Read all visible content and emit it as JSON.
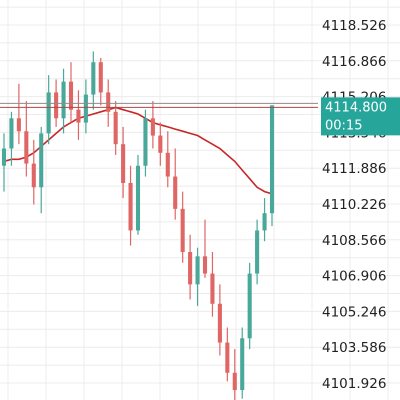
{
  "chart_data": {
    "type": "candlestick",
    "ylim": [
      4101.0,
      4119.4
    ],
    "y_ticks": [
      "4118.526",
      "4116.866",
      "4115.206",
      "4113.546",
      "4111.886",
      "4110.226",
      "4108.566",
      "4106.906",
      "4105.246",
      "4103.586",
      "4101.926"
    ],
    "grid": true,
    "colors": {
      "up": "#4aa89a",
      "down": "#e06666",
      "ma": "#c62828",
      "grid": "#ececec",
      "price_line": "#8c8c8c",
      "tag_bg": "#26a69a"
    },
    "current_price": {
      "value": 4114.8,
      "label": "4114.800",
      "countdown": "00:15"
    },
    "ma_series": [
      4112.2,
      4112.3,
      4112.3,
      4112.4,
      4112.6,
      4112.9,
      4113.2,
      4113.5,
      4113.8,
      4114.0,
      4114.2,
      4114.3,
      4114.4,
      4114.5,
      4114.6,
      4114.7,
      4114.6,
      4114.5,
      4114.4,
      4114.2,
      4114.0,
      4113.9,
      4113.8,
      4113.7,
      4113.6,
      4113.5,
      4113.4,
      4113.2,
      4113.0,
      4112.8,
      4112.5,
      4112.2,
      4111.8,
      4111.4,
      4111.0,
      4110.8,
      4110.7
    ],
    "candles": [
      {
        "o": 4112.0,
        "h": 4113.5,
        "l": 4110.8,
        "c": 4112.8
      },
      {
        "o": 4112.8,
        "h": 4114.5,
        "l": 4112.0,
        "c": 4114.2
      },
      {
        "o": 4114.2,
        "h": 4115.8,
        "l": 4113.0,
        "c": 4113.6
      },
      {
        "o": 4113.6,
        "h": 4115.0,
        "l": 4111.5,
        "c": 4112.1
      },
      {
        "o": 4112.1,
        "h": 4113.2,
        "l": 4110.2,
        "c": 4111.0
      },
      {
        "o": 4111.0,
        "h": 4113.8,
        "l": 4109.8,
        "c": 4113.5
      },
      {
        "o": 4113.5,
        "h": 4116.2,
        "l": 4113.0,
        "c": 4115.4
      },
      {
        "o": 4115.4,
        "h": 4116.0,
        "l": 4113.8,
        "c": 4114.2
      },
      {
        "o": 4114.2,
        "h": 4116.5,
        "l": 4113.5,
        "c": 4115.9
      },
      {
        "o": 4115.9,
        "h": 4116.8,
        "l": 4114.0,
        "c": 4114.6
      },
      {
        "o": 4114.6,
        "h": 4115.5,
        "l": 4113.2,
        "c": 4114.0
      },
      {
        "o": 4114.0,
        "h": 4116.0,
        "l": 4113.5,
        "c": 4115.3
      },
      {
        "o": 4115.3,
        "h": 4117.3,
        "l": 4114.6,
        "c": 4116.8
      },
      {
        "o": 4116.8,
        "h": 4117.0,
        "l": 4114.8,
        "c": 4115.4
      },
      {
        "o": 4115.4,
        "h": 4116.0,
        "l": 4113.8,
        "c": 4114.5
      },
      {
        "o": 4114.5,
        "h": 4115.0,
        "l": 4112.5,
        "c": 4113.0
      },
      {
        "o": 4113.0,
        "h": 4113.8,
        "l": 4110.5,
        "c": 4111.2
      },
      {
        "o": 4111.2,
        "h": 4112.0,
        "l": 4108.3,
        "c": 4109.0
      },
      {
        "o": 4109.0,
        "h": 4112.5,
        "l": 4108.8,
        "c": 4112.0
      },
      {
        "o": 4112.0,
        "h": 4114.6,
        "l": 4111.5,
        "c": 4114.2
      },
      {
        "o": 4114.2,
        "h": 4115.0,
        "l": 4112.8,
        "c": 4113.4
      },
      {
        "o": 4113.4,
        "h": 4114.0,
        "l": 4112.0,
        "c": 4112.6
      },
      {
        "o": 4112.6,
        "h": 4113.6,
        "l": 4111.0,
        "c": 4111.5
      },
      {
        "o": 4111.5,
        "h": 4112.8,
        "l": 4109.5,
        "c": 4110.0
      },
      {
        "o": 4110.0,
        "h": 4110.8,
        "l": 4107.5,
        "c": 4108.0
      },
      {
        "o": 4108.0,
        "h": 4108.8,
        "l": 4105.8,
        "c": 4106.5
      },
      {
        "o": 4106.5,
        "h": 4108.2,
        "l": 4105.5,
        "c": 4107.8
      },
      {
        "o": 4107.8,
        "h": 4109.5,
        "l": 4106.8,
        "c": 4107.0
      },
      {
        "o": 4107.0,
        "h": 4108.0,
        "l": 4105.0,
        "c": 4105.6
      },
      {
        "o": 4105.6,
        "h": 4106.5,
        "l": 4103.2,
        "c": 4103.8
      },
      {
        "o": 4103.8,
        "h": 4104.5,
        "l": 4102.0,
        "c": 4102.4
      },
      {
        "o": 4102.4,
        "h": 4103.5,
        "l": 4101.0,
        "c": 4101.6
      },
      {
        "o": 4101.6,
        "h": 4104.5,
        "l": 4101.2,
        "c": 4104.0
      },
      {
        "o": 4104.0,
        "h": 4107.5,
        "l": 4103.5,
        "c": 4107.0
      },
      {
        "o": 4107.0,
        "h": 4109.5,
        "l": 4106.5,
        "c": 4109.0
      },
      {
        "o": 4109.0,
        "h": 4110.5,
        "l": 4108.5,
        "c": 4109.8
      },
      {
        "o": 4109.8,
        "h": 4114.8,
        "l": 4109.2,
        "c": 4114.8
      }
    ]
  }
}
